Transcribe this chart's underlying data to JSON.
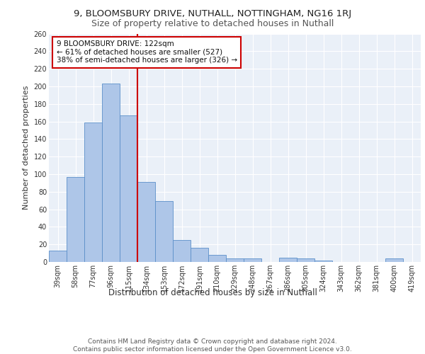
{
  "title1": "9, BLOOMSBURY DRIVE, NUTHALL, NOTTINGHAM, NG16 1RJ",
  "title2": "Size of property relative to detached houses in Nuthall",
  "xlabel": "Distribution of detached houses by size in Nuthall",
  "ylabel": "Number of detached properties",
  "footer1": "Contains HM Land Registry data © Crown copyright and database right 2024.",
  "footer2": "Contains public sector information licensed under the Open Government Licence v3.0.",
  "categories": [
    "39sqm",
    "58sqm",
    "77sqm",
    "96sqm",
    "115sqm",
    "134sqm",
    "153sqm",
    "172sqm",
    "191sqm",
    "210sqm",
    "229sqm",
    "248sqm",
    "267sqm",
    "286sqm",
    "305sqm",
    "324sqm",
    "343sqm",
    "362sqm",
    "381sqm",
    "400sqm",
    "419sqm"
  ],
  "values": [
    13,
    97,
    159,
    203,
    167,
    91,
    69,
    25,
    16,
    8,
    4,
    4,
    0,
    5,
    4,
    2,
    0,
    0,
    0,
    4,
    0
  ],
  "bar_color": "#aec6e8",
  "bar_edge_color": "#5b8fc9",
  "reference_line_color": "#cc0000",
  "annotation_text": "9 BLOOMSBURY DRIVE: 122sqm\n← 61% of detached houses are smaller (527)\n38% of semi-detached houses are larger (326) →",
  "annotation_box_color": "#ffffff",
  "annotation_box_edge_color": "#cc0000",
  "ylim": [
    0,
    260
  ],
  "yticks": [
    0,
    20,
    40,
    60,
    80,
    100,
    120,
    140,
    160,
    180,
    200,
    220,
    240,
    260
  ],
  "bg_color": "#eaf0f8",
  "grid_color": "#ffffff",
  "title1_fontsize": 9.5,
  "title2_fontsize": 9,
  "xlabel_fontsize": 8.5,
  "ylabel_fontsize": 8,
  "tick_fontsize": 7,
  "footer_fontsize": 6.5,
  "annotation_fontsize": 7.5
}
